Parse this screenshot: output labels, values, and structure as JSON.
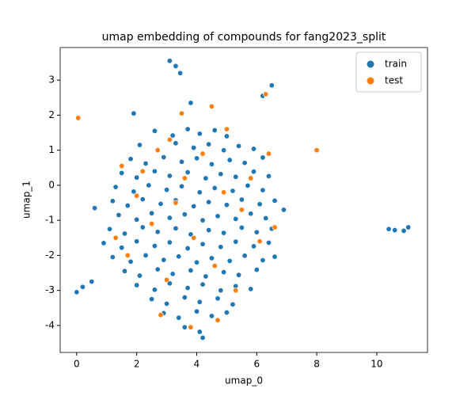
{
  "chart_data": {
    "type": "scatter",
    "title": "umap embedding of compounds for fang2023_split",
    "xlabel": "umap_0",
    "ylabel": "umap_1",
    "xlim": [
      -0.55,
      11.69
    ],
    "ylim": [
      -4.77,
      3.93
    ],
    "xticks": [
      0,
      2,
      4,
      6,
      8,
      10
    ],
    "yticks": [
      -4,
      -3,
      -2,
      -1,
      0,
      1,
      2,
      3
    ],
    "legend": "upper right",
    "series": [
      {
        "name": "train",
        "color": "#1f77b4",
        "x": [
          2.6,
          3.2,
          3.7,
          4.1,
          4.6,
          5.0,
          2.1,
          2.7,
          3.3,
          3.9,
          4.4,
          4.9,
          5.4,
          5.9,
          1.8,
          2.3,
          2.9,
          3.5,
          4.0,
          4.5,
          5.1,
          5.6,
          6.2,
          1.5,
          2.0,
          2.6,
          3.1,
          3.7,
          4.3,
          4.8,
          5.3,
          5.9,
          6.4,
          1.3,
          1.9,
          2.4,
          3.0,
          3.5,
          4.1,
          4.6,
          5.2,
          5.7,
          6.2,
          1.2,
          1.7,
          2.2,
          2.8,
          3.3,
          3.9,
          4.4,
          5.0,
          5.5,
          6.1,
          6.6,
          1.4,
          2.0,
          2.5,
          3.1,
          3.6,
          4.2,
          4.7,
          5.3,
          5.8,
          6.3,
          1.1,
          1.6,
          2.2,
          2.7,
          3.3,
          3.8,
          4.4,
          4.9,
          5.5,
          6.0,
          6.5,
          0.9,
          1.5,
          2.0,
          2.6,
          3.1,
          3.7,
          4.2,
          4.8,
          5.3,
          5.9,
          6.4,
          1.2,
          1.8,
          2.3,
          2.9,
          3.4,
          4.0,
          4.5,
          5.1,
          5.6,
          6.2,
          6.6,
          1.6,
          2.1,
          2.7,
          3.2,
          3.8,
          4.3,
          4.9,
          5.4,
          6.0,
          2.0,
          2.6,
          3.1,
          3.7,
          4.2,
          4.8,
          5.3,
          5.8,
          2.5,
          3.0,
          3.6,
          4.1,
          4.7,
          5.2,
          2.9,
          3.4,
          4.0,
          4.5,
          5.0,
          3.6,
          4.1,
          3.1,
          3.3,
          3.45,
          0,
          0.2,
          0.5,
          0.6,
          10.4,
          10.6,
          10.9,
          11.05,
          6.5,
          6.2,
          6.9,
          1.9,
          3.8,
          4.2
        ],
        "values": [
          1.55,
          1.42,
          1.6,
          1.47,
          1.57,
          1.4,
          1.15,
          1.02,
          1.2,
          1.07,
          1.17,
          1.0,
          1.12,
          1.04,
          0.75,
          0.62,
          0.8,
          0.67,
          0.77,
          0.6,
          0.72,
          0.64,
          0.79,
          0.35,
          0.22,
          0.4,
          0.27,
          0.37,
          0.2,
          0.32,
          0.24,
          0.39,
          0.26,
          -0.05,
          -0.18,
          0,
          -0.13,
          -0.03,
          -0.2,
          -0.08,
          -0.16,
          -0.01,
          -0.14,
          -0.45,
          -0.58,
          -0.4,
          -0.53,
          -0.43,
          -0.6,
          -0.48,
          -0.56,
          -0.41,
          -0.54,
          -0.44,
          -0.85,
          -0.98,
          -0.8,
          -0.93,
          -0.83,
          -1.0,
          -0.88,
          -0.96,
          -0.81,
          -0.94,
          -1.25,
          -1.38,
          -1.2,
          -1.33,
          -1.23,
          -1.4,
          -1.28,
          -1.36,
          -1.21,
          -1.34,
          -1.24,
          -1.65,
          -1.78,
          -1.6,
          -1.73,
          -1.63,
          -1.8,
          -1.68,
          -1.76,
          -1.61,
          -1.74,
          -1.64,
          -2.05,
          -2.18,
          -2.0,
          -2.13,
          -2.03,
          -2.2,
          -2.08,
          -2.16,
          -2.01,
          -2.14,
          -2.04,
          -2.45,
          -2.58,
          -2.4,
          -2.53,
          -2.43,
          -2.6,
          -2.48,
          -2.56,
          -2.41,
          -2.85,
          -2.98,
          -2.8,
          -2.93,
          -2.83,
          -3.0,
          -2.88,
          -2.96,
          -3.25,
          -3.38,
          -3.2,
          -3.33,
          -3.23,
          -3.4,
          -3.65,
          -3.78,
          -3.6,
          -3.73,
          -3.63,
          -4.05,
          -4.18,
          3.55,
          3.4,
          3.2,
          -3.05,
          -2.9,
          -2.75,
          -0.65,
          -1.25,
          -1.28,
          -1.3,
          -1.2,
          2.85,
          2.55,
          -0.7,
          2.05,
          2.35,
          -4.35
        ]
      },
      {
        "name": "test",
        "color": "#ff7f0e",
        "x": [
          0.05,
          8,
          6.3,
          4.5,
          3.1,
          2.2,
          3.6,
          4.9,
          1.5,
          5.5,
          2.5,
          3.9,
          6.1,
          1.7,
          4.6,
          3.0,
          5.3,
          2.8,
          4.7,
          3.8,
          6.4,
          5.8,
          2.0,
          4.2,
          3.3,
          6.6,
          1.3,
          5.0,
          2.7,
          3.5
        ],
        "values": [
          1.92,
          1,
          2.6,
          2.25,
          1.3,
          0.4,
          0.2,
          -0.2,
          0.55,
          -0.7,
          -1.1,
          -1.5,
          -1.6,
          -2.0,
          -2.3,
          -2.7,
          -3.0,
          -3.7,
          -3.85,
          -4.05,
          0.9,
          0.2,
          -0.3,
          0.9,
          -0.5,
          -1.2,
          -1.5,
          1.6,
          1.0,
          2.05
        ]
      }
    ]
  }
}
